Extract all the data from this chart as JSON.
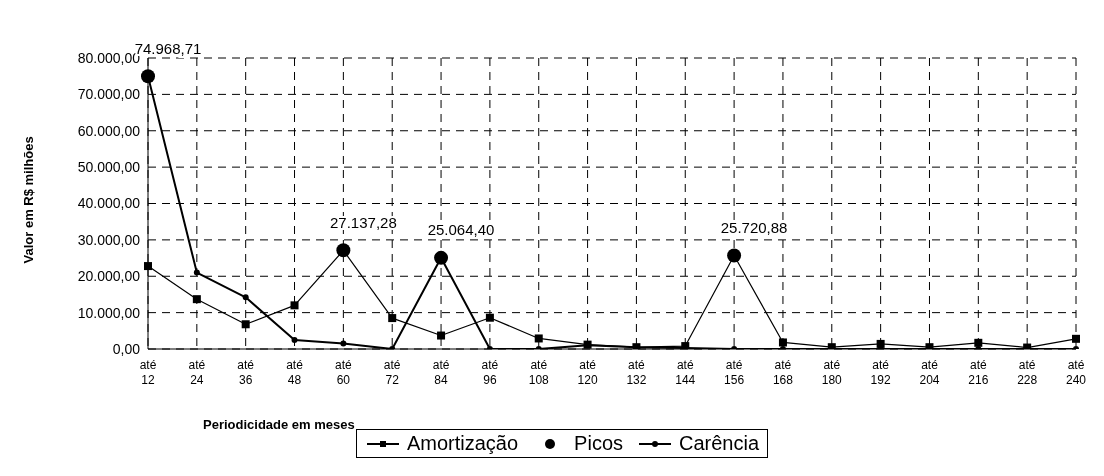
{
  "chart_data": {
    "type": "line",
    "xlabel": "Periodicidade em meses",
    "ylabel": "Valor em R$ milhões",
    "categories": [
      "até 12",
      "até 24",
      "até 36",
      "até 48",
      "até 60",
      "até 72",
      "até 84",
      "até 96",
      "até 108",
      "até 120",
      "até 132",
      "até 144",
      "até 156",
      "até 168",
      "até 180",
      "até 192",
      "até 204",
      "até 216",
      "até 228",
      "até 240"
    ],
    "series": [
      {
        "name": "Amortização",
        "marker": "square",
        "color": "#000000",
        "values": [
          22800,
          13700,
          6800,
          12000,
          27100,
          8500,
          3700,
          8600,
          2900,
          1200,
          500,
          800,
          25700,
          1800,
          500,
          1400,
          500,
          1700,
          400,
          2800
        ]
      },
      {
        "name": "Picos",
        "type": "scatter",
        "marker": "circle",
        "color": "#000000",
        "values": [
          74968.71,
          null,
          null,
          null,
          27137.28,
          null,
          25064.4,
          null,
          null,
          null,
          null,
          null,
          25720.88,
          null,
          null,
          null,
          null,
          null,
          null,
          null
        ],
        "value_labels": [
          "74.968,71",
          null,
          null,
          null,
          "27.137,28",
          null,
          "25.064,40",
          null,
          null,
          null,
          null,
          null,
          "25.720,88",
          null,
          null,
          null,
          null,
          null,
          null,
          null
        ]
      },
      {
        "name": "Carência",
        "marker": "circle",
        "color": "#000000",
        "values": [
          75000,
          21000,
          14200,
          2500,
          1500,
          0,
          25100,
          0,
          0,
          1000,
          500,
          300,
          0,
          0,
          0,
          0,
          0,
          0,
          0,
          0
        ]
      }
    ],
    "ylim": [
      0,
      80000
    ],
    "yticks": [
      {
        "value": 0,
        "label": "0,00"
      },
      {
        "value": 10000,
        "label": "10.000,00"
      },
      {
        "value": 20000,
        "label": "20.000,00"
      },
      {
        "value": 30000,
        "label": "30.000,00"
      },
      {
        "value": 40000,
        "label": "40.000,00"
      },
      {
        "value": 50000,
        "label": "50.000,00"
      },
      {
        "value": 60000,
        "label": "60.000,00"
      },
      {
        "value": 70000,
        "label": "70.000,00"
      },
      {
        "value": 80000,
        "label": "80.000,00"
      }
    ],
    "grid": true,
    "legend": "bottom"
  }
}
